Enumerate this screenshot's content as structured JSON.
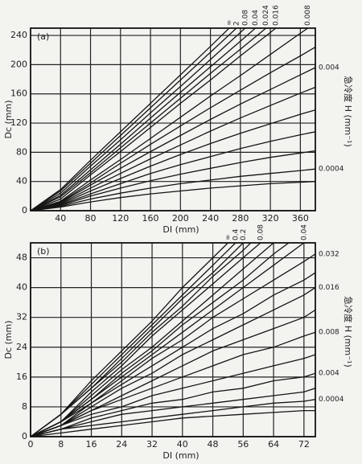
{
  "chart_data": [
    {
      "type": "line",
      "panel_label": "(a)",
      "xlabel": "DI (mm)",
      "ylabel": "Dc (mm)",
      "y2label": "急冷度 H (mm⁻¹)",
      "x": [
        0,
        40,
        80,
        120,
        160,
        200,
        240,
        280,
        320,
        360,
        380
      ],
      "xlim": [
        0,
        380
      ],
      "ylim": [
        0,
        250
      ],
      "xticks": [
        40,
        80,
        120,
        160,
        200,
        240,
        280,
        320,
        360
      ],
      "yticks": [
        0,
        40,
        80,
        120,
        160,
        200,
        240
      ],
      "grid": true,
      "color": "#151515",
      "series": [
        {
          "name": "∞",
          "values": [
            0,
            29,
            69,
            108,
            147,
            186,
            225,
            265,
            null,
            null,
            null
          ]
        },
        {
          "name": "2",
          "values": [
            0,
            27,
            65,
            103,
            141,
            179,
            217,
            255,
            null,
            null,
            null
          ]
        },
        {
          "name": "0.08",
          "values": [
            0,
            24,
            61,
            97,
            134,
            170,
            207,
            244,
            281,
            null,
            null
          ]
        },
        {
          "name": "0.04",
          "values": [
            0,
            21,
            56,
            91,
            127,
            162,
            197,
            232,
            268,
            null,
            null
          ]
        },
        {
          "name": "0.024",
          "values": [
            0,
            19,
            52,
            86,
            120,
            154,
            188,
            221,
            255,
            null,
            null
          ]
        },
        {
          "name": "0.016",
          "values": [
            0,
            16,
            49,
            81,
            114,
            147,
            179,
            212,
            244,
            277,
            null
          ]
        },
        {
          "name": "0.008",
          "values": [
            0,
            13,
            42,
            70,
            99,
            128,
            157,
            185,
            214,
            243,
            257
          ]
        },
        {
          "values": [
            0,
            12,
            38,
            65,
            91,
            116,
            141,
            165,
            189,
            212,
            224
          ]
        },
        {
          "name": "0.004",
          "values": [
            0,
            11,
            35,
            58,
            81,
            103,
            125,
            146,
            166,
            186,
            196
          ]
        },
        {
          "values": [
            0,
            10,
            31,
            51,
            71,
            90,
            109,
            127,
            144,
            161,
            169
          ]
        },
        {
          "values": [
            0,
            9,
            27,
            44,
            61,
            77,
            92,
            106,
            119,
            132,
            138
          ]
        },
        {
          "values": [
            0,
            8,
            23,
            37,
            51,
            63,
            74,
            85,
            95,
            104,
            108
          ]
        },
        {
          "values": [
            0,
            7,
            20,
            31,
            41,
            50,
            58,
            66,
            73,
            79,
            82
          ]
        },
        {
          "name": "0.0004",
          "values": [
            0,
            6,
            16,
            24,
            31,
            37,
            42,
            47,
            51,
            55,
            57
          ]
        },
        {
          "values": [
            0,
            5,
            12,
            18,
            23,
            27,
            31,
            34,
            37,
            39,
            40
          ]
        }
      ]
    },
    {
      "type": "line",
      "panel_label": "(b)",
      "xlabel": "DI (mm)",
      "ylabel": "Dc (mm)",
      "y2label": "急冷度 H (mm⁻¹)",
      "x": [
        0,
        8,
        16,
        24,
        32,
        40,
        48,
        56,
        64,
        72,
        75
      ],
      "xlim": [
        0,
        75
      ],
      "ylim": [
        0,
        52
      ],
      "xticks": [
        0,
        8,
        16,
        24,
        32,
        40,
        48,
        56,
        64,
        72
      ],
      "yticks": [
        0,
        8,
        16,
        24,
        32,
        40,
        48
      ],
      "grid": true,
      "color": "#151515",
      "series": [
        {
          "name": "∞",
          "values": [
            0,
            6,
            15,
            23,
            31,
            40,
            48,
            56,
            null,
            null,
            null
          ]
        },
        {
          "name": "0.4",
          "values": [
            0,
            6,
            14,
            22,
            30,
            38,
            46,
            54,
            null,
            null,
            null
          ]
        },
        {
          "name": "0.2",
          "values": [
            0,
            6,
            13,
            21,
            29,
            37,
            44,
            52,
            60,
            null,
            null
          ]
        },
        {
          "values": [
            0,
            6,
            13,
            20,
            28,
            35,
            43,
            50,
            58,
            null,
            null
          ]
        },
        {
          "name": "0.08",
          "values": [
            0,
            4,
            12,
            19,
            27,
            34,
            41,
            48,
            55,
            62,
            null
          ]
        },
        {
          "values": [
            0,
            4,
            11,
            18,
            24,
            31,
            38,
            45,
            52,
            58,
            null
          ]
        },
        {
          "values": [
            0,
            4,
            10,
            17,
            23,
            30,
            36,
            42,
            49,
            55,
            58
          ]
        },
        {
          "name": "0.04",
          "values": [
            0,
            4,
            10,
            16,
            22,
            28,
            34,
            40,
            46,
            52,
            54
          ]
        },
        {
          "name": "0.032",
          "values": [
            0,
            4,
            9,
            15,
            21,
            26,
            32,
            37,
            42,
            47,
            49
          ]
        },
        {
          "values": [
            0,
            3,
            9,
            14,
            19,
            24,
            29,
            33,
            38,
            42,
            44
          ]
        },
        {
          "name": "0.016",
          "values": [
            0,
            3,
            8,
            13,
            17,
            22,
            26,
            30,
            34,
            38,
            40
          ]
        },
        {
          "values": [
            0,
            3,
            7,
            11,
            15,
            19,
            23,
            26,
            29,
            32,
            34
          ]
        },
        {
          "name": "0.008",
          "values": [
            0,
            3,
            7,
            10,
            13,
            16,
            19,
            22,
            24,
            27,
            28
          ]
        },
        {
          "values": [
            0,
            3,
            6,
            8,
            11,
            13,
            15,
            17,
            19,
            21,
            22
          ]
        },
        {
          "name": "0.004",
          "values": [
            0,
            2,
            5,
            7,
            9,
            10,
            12,
            13,
            15,
            16,
            17
          ]
        },
        {
          "values": [
            0,
            2,
            4,
            6,
            7,
            8,
            9,
            10,
            11,
            12,
            13
          ]
        },
        {
          "name": "0.0004",
          "values": [
            0,
            2,
            3,
            4,
            5,
            6,
            7,
            8,
            9,
            9.5,
            10
          ]
        },
        {
          "values": [
            0,
            1,
            2,
            3,
            4,
            5,
            5.5,
            6,
            6.5,
            7,
            7
          ]
        }
      ]
    }
  ]
}
